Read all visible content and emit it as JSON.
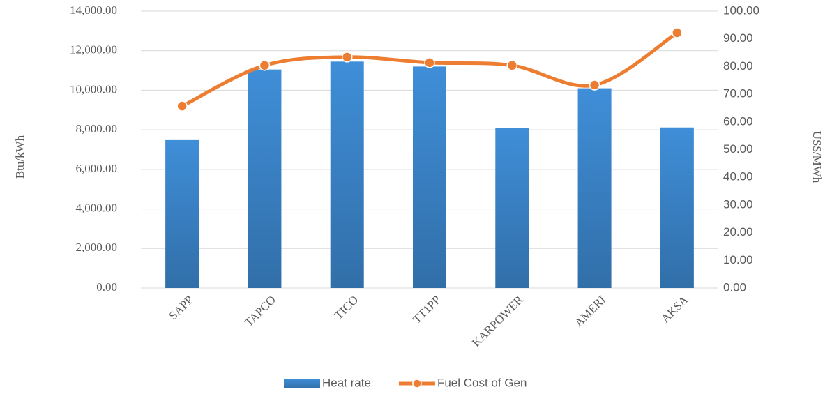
{
  "chart_data": {
    "type": "bar-line",
    "categories": [
      "SAPP",
      "TAPCO",
      "TICO",
      "TT1PP",
      "KARPOWER",
      "AMERI",
      "AKSA"
    ],
    "series": [
      {
        "name": "Heat rate",
        "type": "bar",
        "color": "#3f8ed8",
        "values": [
          7480,
          11050,
          11450,
          11200,
          8100,
          10100,
          8120
        ]
      },
      {
        "name": "Fuel Cost of Gen",
        "type": "line",
        "axis": "y2",
        "color": "#ed7d31",
        "values": [
          65.7,
          80.4,
          83.4,
          81.4,
          80.4,
          73.3,
          92.2
        ]
      }
    ],
    "ylabel": "Btu/kWh",
    "y2label": "US$/MWh",
    "ylim": [
      0,
      14000
    ],
    "yticks": [
      {
        "value": 0,
        "label": "0.00"
      },
      {
        "value": 2000,
        "label": "2,000.00"
      },
      {
        "value": 4000,
        "label": "4,000.00"
      },
      {
        "value": 6000,
        "label": "6,000.00"
      },
      {
        "value": 8000,
        "label": "8,000.00"
      },
      {
        "value": 10000,
        "label": "10,000.00"
      },
      {
        "value": 12000,
        "label": "12,000.00"
      },
      {
        "value": 14000,
        "label": "14,000.00"
      }
    ],
    "y2lim": [
      0,
      100
    ],
    "y2ticks": [
      {
        "value": 0,
        "label": "0.00"
      },
      {
        "value": 10,
        "label": "10.00"
      },
      {
        "value": 20,
        "label": "20.00"
      },
      {
        "value": 30,
        "label": "30.00"
      },
      {
        "value": 40,
        "label": "40.00"
      },
      {
        "value": 50,
        "label": "50.00"
      },
      {
        "value": 60,
        "label": "60.00"
      },
      {
        "value": 70,
        "label": "70.00"
      },
      {
        "value": 80,
        "label": "80.00"
      },
      {
        "value": 90,
        "label": "90.00"
      },
      {
        "value": 100,
        "label": "100.00"
      }
    ],
    "grid": true,
    "legend": "bottom"
  }
}
